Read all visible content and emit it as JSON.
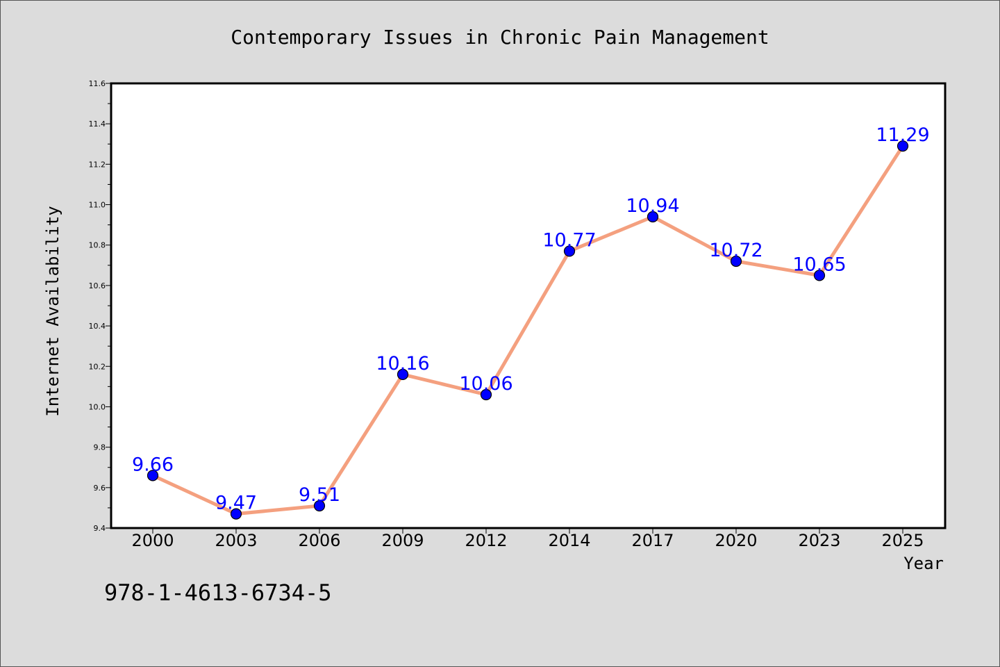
{
  "chart_data": {
    "type": "line",
    "title": "Contemporary Issues in Chronic Pain Management",
    "xlabel": "Year",
    "ylabel": "Internet Availability",
    "categories": [
      "2000",
      "2003",
      "2006",
      "2009",
      "2012",
      "2014",
      "2017",
      "2020",
      "2023",
      "2025"
    ],
    "series": [
      {
        "values": [
          9.66,
          9.47,
          9.51,
          10.16,
          10.06,
          10.77,
          10.94,
          10.72,
          10.65,
          11.29
        ],
        "data_labels": [
          "9.66",
          "9.47",
          "9.51",
          "10.16",
          "10.06",
          "10.77",
          "10.94",
          "10.72",
          "10.65",
          "11.29"
        ],
        "line_color": "#f4a07f",
        "marker_color": "#0000ff"
      }
    ],
    "ylim": [
      9.4,
      11.6
    ],
    "yticks": [
      "9.4",
      "9.6",
      "9.8",
      "10.0",
      "10.2",
      "10.4",
      "10.6",
      "10.8",
      "11.0",
      "11.2",
      "11.4",
      "11.6"
    ],
    "grid": false,
    "label_color": "#0000ff"
  },
  "footer": {
    "isbn": "978-1-4613-6734-5"
  },
  "colors": {
    "background": "#dcdcdc",
    "plot_background": "#ffffff"
  }
}
